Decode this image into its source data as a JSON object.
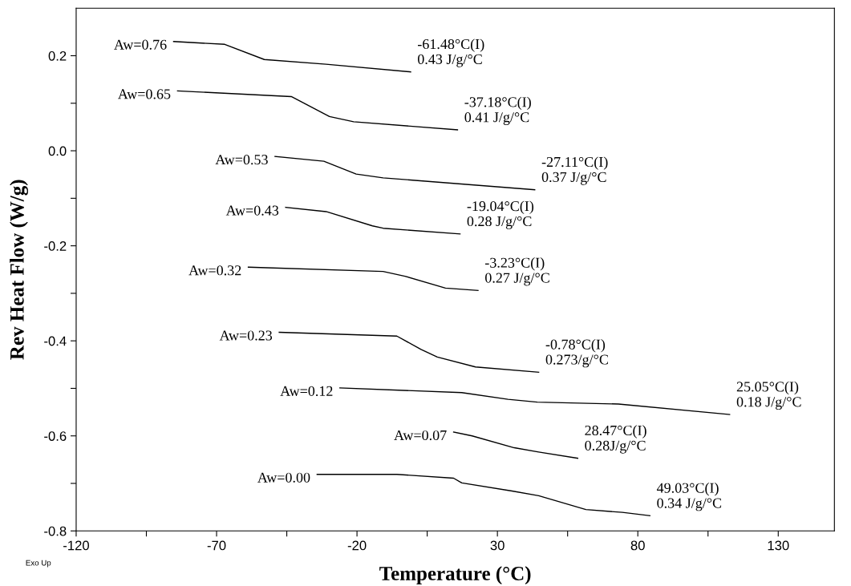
{
  "chart_data": {
    "type": "line",
    "xlabel": "Temperature (°C)",
    "ylabel": "Rev Heat Flow (W/g)",
    "xlim": [
      -120,
      150
    ],
    "ylim": [
      -0.8,
      0.3
    ],
    "xticks": [
      -120,
      {
        "value": -95,
        "label": null
      },
      -70,
      {
        "value": -45,
        "label": null
      },
      -20,
      {
        "value": 5,
        "label": null
      },
      30,
      {
        "value": 55,
        "label": null
      },
      80,
      {
        "value": 105,
        "label": null
      },
      130
    ],
    "yticks": [
      {
        "value": -0.8,
        "label": "-0.8"
      },
      {
        "value": -0.7,
        "label": null
      },
      {
        "value": -0.6,
        "label": "-0.6"
      },
      {
        "value": -0.5,
        "label": null
      },
      {
        "value": -0.4,
        "label": "-0.4"
      },
      {
        "value": -0.3,
        "label": null
      },
      {
        "value": -0.2,
        "label": "-0.2"
      },
      {
        "value": -0.1,
        "label": null
      },
      {
        "value": 0.0,
        "label": "0.0"
      },
      {
        "value": 0.1,
        "label": null
      },
      {
        "value": 0.2,
        "label": "0.2"
      }
    ],
    "grid": false,
    "legend": false,
    "line_style": "solid",
    "series": [
      {
        "name": "Aw=0.76",
        "color": "#000000",
        "x": [
          -85.3,
          -67.1,
          -53,
          -31,
          -0.9
        ],
        "values": [
          0.23,
          0.224,
          0.192,
          0.182,
          0.166
        ]
      },
      {
        "name": "Aw=0.65",
        "color": "#000000",
        "x": [
          -83.9,
          -43.4,
          -29.8,
          -21.2,
          15.8
        ],
        "values": [
          0.126,
          0.114,
          0.072,
          0.061,
          0.044
        ]
      },
      {
        "name": "Aw=0.53",
        "color": "#000000",
        "x": [
          -49.2,
          -31.8,
          -20.3,
          -10.7,
          43.3
        ],
        "values": [
          -0.012,
          -0.022,
          -0.049,
          -0.057,
          -0.082
        ]
      },
      {
        "name": "Aw=0.43",
        "color": "#000000",
        "x": [
          -45.4,
          -31,
          -14.5,
          -10.7,
          16.7
        ],
        "values": [
          -0.119,
          -0.128,
          -0.158,
          -0.163,
          -0.175
        ]
      },
      {
        "name": "Aw=0.32",
        "color": "#000000",
        "x": [
          -58.7,
          -10.7,
          -2.9,
          11.5,
          23.1
        ],
        "values": [
          -0.245,
          -0.254,
          -0.264,
          -0.289,
          -0.294
        ]
      },
      {
        "name": "Aw=0.23",
        "color": "#000000",
        "x": [
          -47.7,
          -5.8,
          2.8,
          8.6,
          22.2,
          44.7
        ],
        "values": [
          -0.382,
          -0.39,
          -0.418,
          -0.434,
          -0.455,
          -0.466
        ]
      },
      {
        "name": "Aw=0.12",
        "color": "#000000",
        "x": [
          -26.1,
          17.3,
          33.8,
          44.2,
          73.1,
          112.7
        ],
        "values": [
          -0.499,
          -0.509,
          -0.523,
          -0.529,
          -0.533,
          -0.555
        ]
      },
      {
        "name": "Aw=0.07",
        "color": "#000000",
        "x": [
          14.4,
          21,
          36,
          44.7,
          58.6
        ],
        "values": [
          -0.592,
          -0.6,
          -0.625,
          -0.634,
          -0.647
        ]
      },
      {
        "name": "Aw=0.00",
        "color": "#000000",
        "x": [
          -34.2,
          -5.8,
          14.4,
          17.3,
          35.2,
          44.7,
          61.5,
          74.5,
          84.3
        ],
        "values": [
          -0.681,
          -0.681,
          -0.689,
          -0.699,
          -0.716,
          -0.726,
          -0.755,
          -0.761,
          -0.768
        ]
      }
    ],
    "annotations": [
      "-61.48°C(I)\n0.43 J/g/°C",
      "-37.18°C(I)\n0.41 J/g/°C",
      "-27.11°C(I)\n0.37 J/g/°C",
      "-19.04°C(I)\n0.28 J/g/°C",
      "-3.23°C(I)\n0.27 J/g/°C",
      "-0.78°C(I)\n0.273/g/°C",
      "25.05°C(I)\n0.18 J/g/°C",
      "28.47°C(I)\n0.28J/g/°C",
      "49.03°C(I)\n0.34 J/g/°C",
      "Exo Up"
    ]
  }
}
